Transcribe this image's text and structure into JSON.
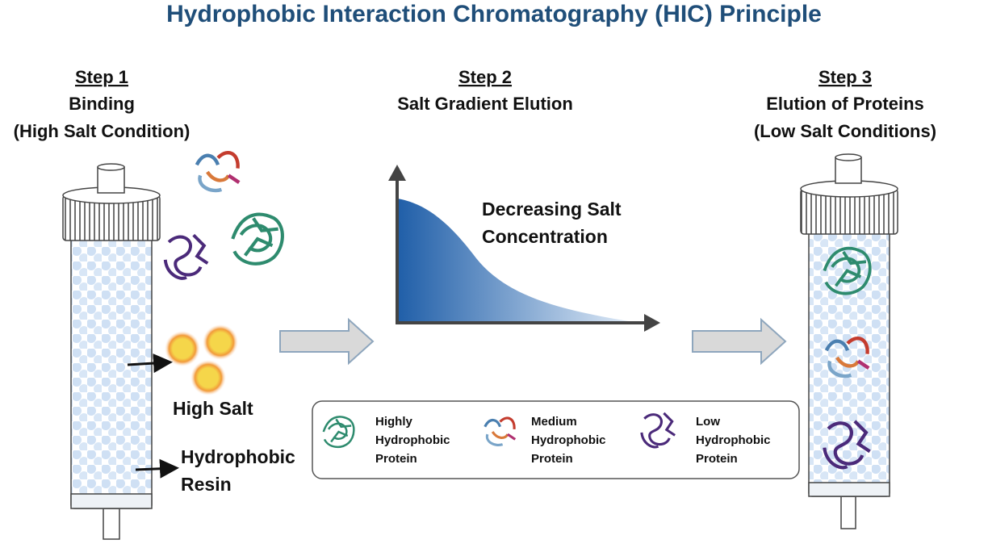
{
  "title": "Hydrophobic Interaction Chromatography (HIC) Principle",
  "steps": [
    {
      "heading": "Step 1",
      "lines": [
        "Binding",
        "(High Salt Condition)"
      ]
    },
    {
      "heading": "Step 2",
      "lines": [
        "Salt Gradient Elution"
      ]
    },
    {
      "heading": "Step 3",
      "lines": [
        "Elution of Proteins",
        "(Low Salt Conditions)"
      ]
    }
  ],
  "labels": {
    "high_salt": "High Salt",
    "resin": [
      "Hydrophobic",
      "Resin"
    ],
    "gradient": [
      "Decreasing Salt",
      "Concentration"
    ]
  },
  "legend": [
    {
      "lines": [
        "Highly",
        "Hydrophobic",
        "Protein"
      ]
    },
    {
      "lines": [
        "Medium",
        "Hydrophobic",
        "Protein"
      ]
    },
    {
      "lines": [
        "Low",
        "Hydrophobic",
        "Protein"
      ]
    }
  ]
}
